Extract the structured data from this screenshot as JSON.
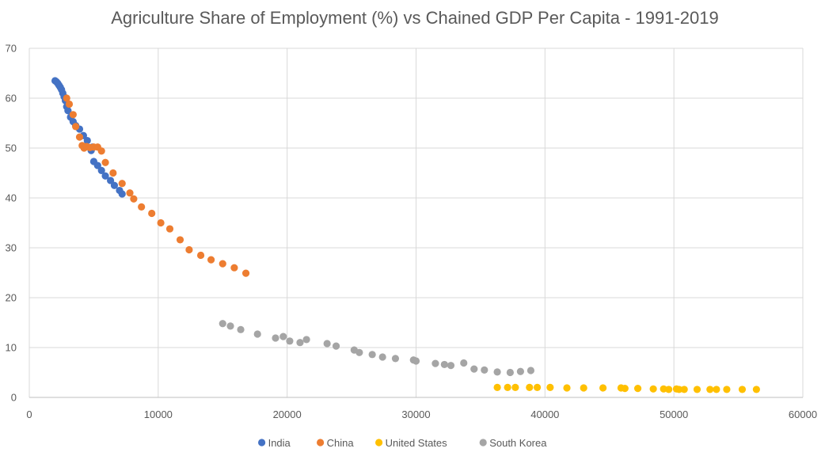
{
  "chart_data": {
    "type": "scatter",
    "title": "Agriculture Share of Employment (%) vs Chained GDP Per Capita - 1991-2019",
    "xlabel": "",
    "ylabel": "",
    "xlim": [
      0,
      60000
    ],
    "ylim": [
      0,
      70
    ],
    "x_ticks": [
      0,
      10000,
      20000,
      30000,
      40000,
      50000,
      60000
    ],
    "x_tick_labels": [
      "0",
      "10000",
      "20000",
      "30000",
      "40000",
      "50000",
      "60000"
    ],
    "y_ticks": [
      0,
      10,
      20,
      30,
      40,
      50,
      60,
      70
    ],
    "y_tick_labels": [
      "0",
      "10",
      "20",
      "30",
      "40",
      "50",
      "60",
      "70"
    ],
    "grid": true,
    "legend_position": "bottom",
    "series": [
      {
        "name": "India",
        "color": "#4472C4",
        "points": [
          [
            2000,
            63.5
          ],
          [
            2100,
            63.3
          ],
          [
            2200,
            63.0
          ],
          [
            2300,
            62.6
          ],
          [
            2400,
            62.2
          ],
          [
            2500,
            61.7
          ],
          [
            2600,
            61.0
          ],
          [
            2700,
            60.3
          ],
          [
            2800,
            59.5
          ],
          [
            2900,
            58.3
          ],
          [
            3000,
            57.5
          ],
          [
            3200,
            56.2
          ],
          [
            3400,
            55.3
          ],
          [
            3600,
            54.5
          ],
          [
            3900,
            53.8
          ],
          [
            4200,
            52.5
          ],
          [
            4500,
            51.5
          ],
          [
            4800,
            49.5
          ],
          [
            4900,
            50.2
          ],
          [
            5000,
            47.3
          ],
          [
            5300,
            46.5
          ],
          [
            5600,
            45.5
          ],
          [
            5900,
            44.4
          ],
          [
            6300,
            43.5
          ],
          [
            6600,
            42.5
          ],
          [
            7000,
            41.5
          ],
          [
            7200,
            40.8
          ]
        ]
      },
      {
        "name": "China",
        "color": "#ED7D31",
        "points": [
          [
            2900,
            60.0
          ],
          [
            3100,
            58.8
          ],
          [
            3400,
            56.7
          ],
          [
            3600,
            54.3
          ],
          [
            3900,
            52.2
          ],
          [
            4100,
            50.5
          ],
          [
            4250,
            50.0
          ],
          [
            4450,
            50.3
          ],
          [
            4700,
            50.1
          ],
          [
            5000,
            50.2
          ],
          [
            5300,
            50.2
          ],
          [
            5600,
            49.4
          ],
          [
            5900,
            47.1
          ],
          [
            6500,
            45.0
          ],
          [
            7200,
            42.9
          ],
          [
            7800,
            41.0
          ],
          [
            8100,
            39.8
          ],
          [
            8700,
            38.2
          ],
          [
            9500,
            36.9
          ],
          [
            10200,
            35.0
          ],
          [
            10900,
            33.8
          ],
          [
            11700,
            31.6
          ],
          [
            12400,
            29.6
          ],
          [
            13300,
            28.5
          ],
          [
            14100,
            27.6
          ],
          [
            15000,
            26.8
          ],
          [
            15900,
            26.0
          ],
          [
            16800,
            24.9
          ]
        ]
      },
      {
        "name": "United States",
        "color": "#FFC000",
        "points": [
          [
            36300,
            2.0
          ],
          [
            37100,
            2.0
          ],
          [
            37700,
            2.0
          ],
          [
            38800,
            2.0
          ],
          [
            39400,
            2.0
          ],
          [
            40400,
            2.0
          ],
          [
            41700,
            1.9
          ],
          [
            43000,
            1.9
          ],
          [
            44500,
            1.9
          ],
          [
            45900,
            1.9
          ],
          [
            46200,
            1.8
          ],
          [
            47200,
            1.8
          ],
          [
            48400,
            1.7
          ],
          [
            49200,
            1.7
          ],
          [
            49600,
            1.6
          ],
          [
            50200,
            1.7
          ],
          [
            50400,
            1.6
          ],
          [
            50800,
            1.6
          ],
          [
            51800,
            1.6
          ],
          [
            52800,
            1.6
          ],
          [
            53300,
            1.6
          ],
          [
            54100,
            1.6
          ],
          [
            55300,
            1.6
          ],
          [
            56400,
            1.6
          ]
        ]
      },
      {
        "name": "South Korea",
        "color": "#A5A5A5",
        "points": [
          [
            15000,
            14.8
          ],
          [
            15600,
            14.3
          ],
          [
            16400,
            13.6
          ],
          [
            17700,
            12.7
          ],
          [
            19100,
            11.9
          ],
          [
            19700,
            12.2
          ],
          [
            20200,
            11.3
          ],
          [
            21000,
            11.0
          ],
          [
            21500,
            11.6
          ],
          [
            23100,
            10.8
          ],
          [
            23800,
            10.3
          ],
          [
            25200,
            9.5
          ],
          [
            25600,
            9.0
          ],
          [
            26600,
            8.6
          ],
          [
            27400,
            8.1
          ],
          [
            28400,
            7.8
          ],
          [
            29800,
            7.5
          ],
          [
            30000,
            7.3
          ],
          [
            31500,
            6.8
          ],
          [
            32200,
            6.6
          ],
          [
            32700,
            6.4
          ],
          [
            33700,
            6.9
          ],
          [
            34500,
            5.7
          ],
          [
            35300,
            5.5
          ],
          [
            36300,
            5.1
          ],
          [
            37300,
            5.0
          ],
          [
            38100,
            5.2
          ],
          [
            38900,
            5.4
          ]
        ]
      }
    ]
  }
}
